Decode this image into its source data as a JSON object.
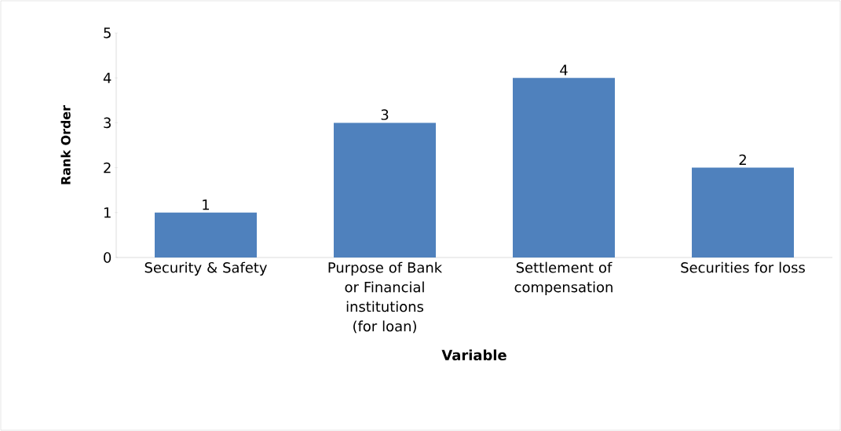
{
  "chart_data": {
    "type": "bar",
    "xlabel": "Variable",
    "ylabel": "Rank Order",
    "categories": [
      "Security & Safety",
      "Purpose of Bank or Financial institutions (for loan)",
      "Settlement of compensation",
      "Securities for loss"
    ],
    "values": [
      1,
      3,
      4,
      2
    ],
    "color": "#4f81bd",
    "ylim": [
      0,
      5
    ],
    "yticks": [
      0,
      1,
      2,
      3,
      4,
      5
    ],
    "data_labels": true
  }
}
